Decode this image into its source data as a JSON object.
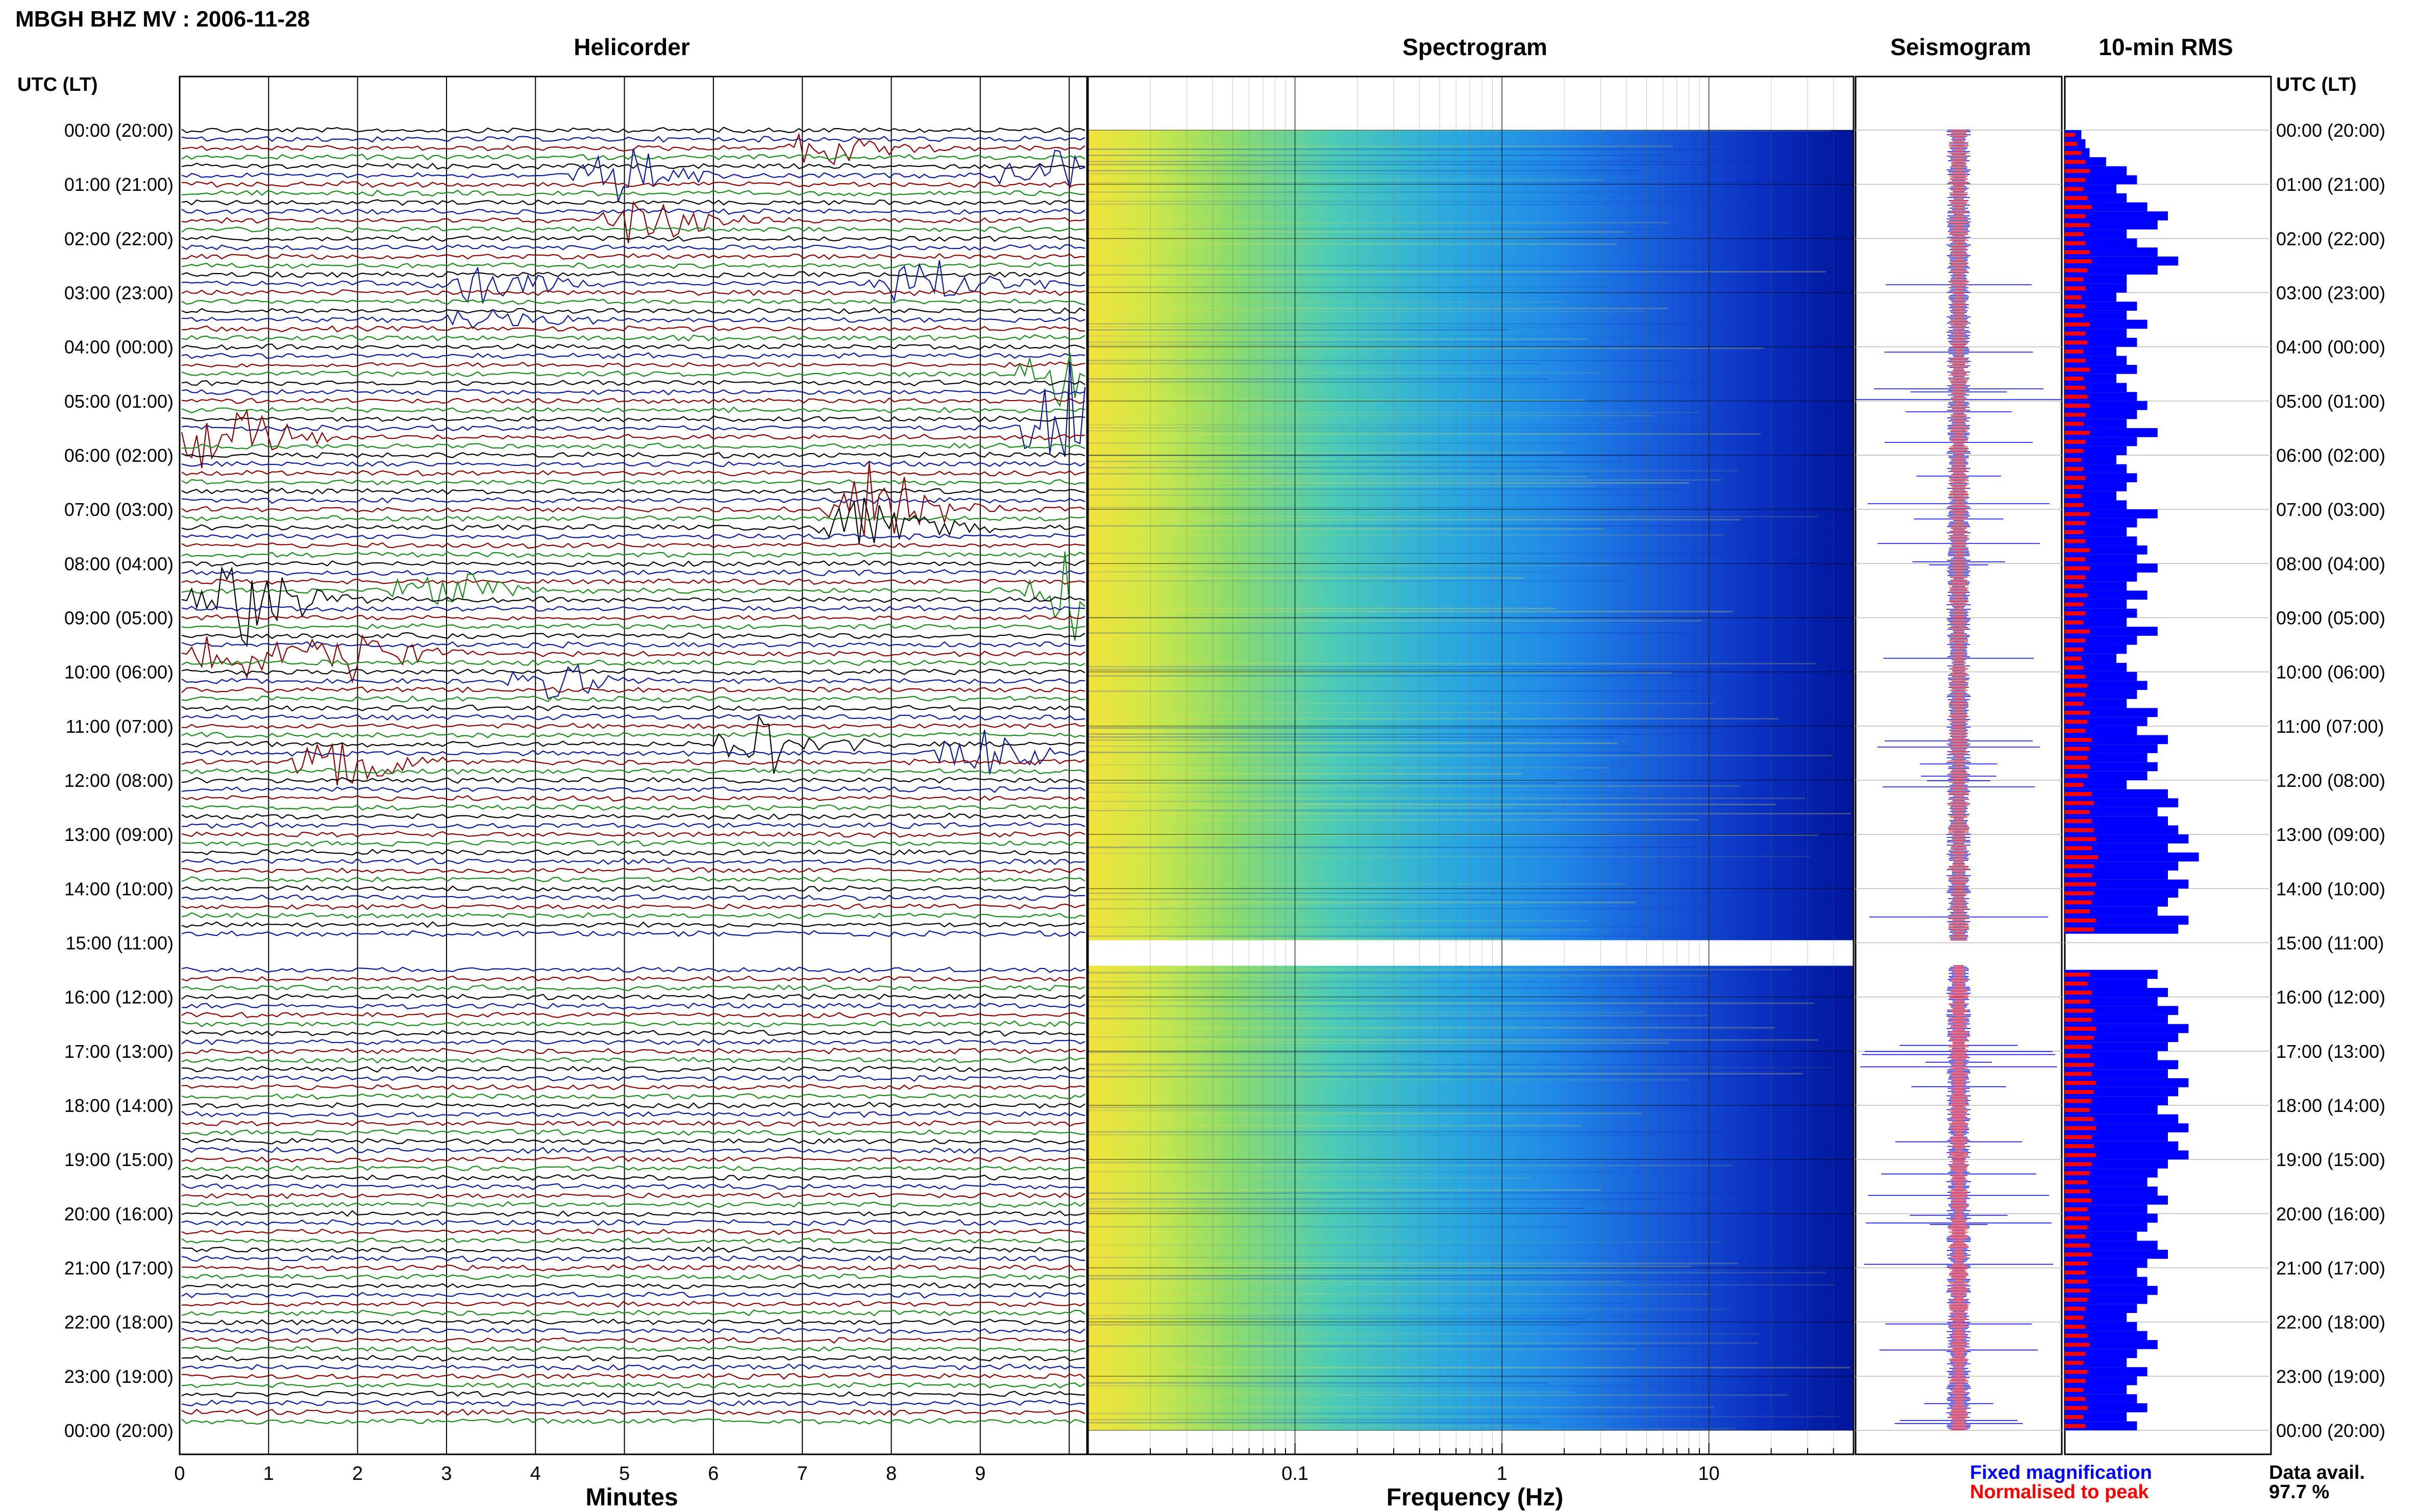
{
  "header": {
    "title": "MBGH BHZ MV : 2006-11-28",
    "utc_label": "UTC (LT)"
  },
  "panels": {
    "helicorder": "Helicorder",
    "spectrogram": "Spectrogram",
    "seismogram": "Seismogram",
    "rms": "10-min RMS"
  },
  "axes": {
    "helicorder_xlabel": "Minutes",
    "helicorder_ticks": [
      "0",
      "1",
      "2",
      "3",
      "4",
      "5",
      "6",
      "7",
      "8",
      "9"
    ],
    "spectrogram_xlabel": "Frequency (Hz)",
    "spectrogram_ticks": [
      "0.1",
      "1",
      "10"
    ]
  },
  "time_labels": [
    "00:00 (20:00)",
    "01:00 (21:00)",
    "02:00 (22:00)",
    "03:00 (23:00)",
    "04:00 (00:00)",
    "05:00 (01:00)",
    "06:00 (02:00)",
    "07:00 (03:00)",
    "08:00 (04:00)",
    "09:00 (05:00)",
    "10:00 (06:00)",
    "11:00 (07:00)",
    "12:00 (08:00)",
    "13:00 (09:00)",
    "14:00 (10:00)",
    "15:00 (11:00)",
    "16:00 (12:00)",
    "17:00 (13:00)",
    "18:00 (14:00)",
    "19:00 (15:00)",
    "20:00 (16:00)",
    "21:00 (17:00)",
    "22:00 (18:00)",
    "23:00 (19:00)",
    "00:00 (20:00)"
  ],
  "legend": {
    "fixed": "Fixed magnification",
    "normalised": "Normalised to peak",
    "fixed_color": "#0000ff",
    "normalised_color": "#ff0000"
  },
  "availability": {
    "label": "Data avail.",
    "value": "97.7 %"
  },
  "colors": {
    "trace_cycle": [
      "#000000",
      "#0a1a9a",
      "#8b0000",
      "#1a8a1a"
    ],
    "rms_fixed": "#0000ff",
    "rms_normalised": "#ff0000"
  },
  "chart_data": {
    "type": "heatmap",
    "title": "MBGH BHZ MV : 2006-11-28",
    "helicorder": {
      "xlabel": "Minutes",
      "xlim": [
        0,
        10
      ],
      "lines_per_hour": 6,
      "hours": 24,
      "data_gap_utc": [
        "15:00",
        "15:20"
      ],
      "events": [
        {
          "line": 2,
          "minute": 7.0,
          "amp": 0.9
        },
        {
          "line": 5,
          "minute": 4.7,
          "amp": 1.0
        },
        {
          "line": 5,
          "minute": 9.4,
          "amp": 0.9
        },
        {
          "line": 10,
          "minute": 5.0,
          "amp": 1.0
        },
        {
          "line": 17,
          "minute": 3.1,
          "amp": 0.9
        },
        {
          "line": 17,
          "minute": 8.0,
          "amp": 1.1
        },
        {
          "line": 21,
          "minute": 3.2,
          "amp": 0.6
        },
        {
          "line": 27,
          "minute": 9.6,
          "amp": 1.0
        },
        {
          "line": 34,
          "minute": 0.3,
          "amp": 1.4
        },
        {
          "line": 33,
          "minute": 9.6,
          "amp": 2.0
        },
        {
          "line": 42,
          "minute": 7.5,
          "amp": 1.6
        },
        {
          "line": 44,
          "minute": 7.4,
          "amp": 1.3
        },
        {
          "line": 51,
          "minute": 9.7,
          "amp": 1.3
        },
        {
          "line": 52,
          "minute": 0.5,
          "amp": 1.5
        },
        {
          "line": 51,
          "minute": 2.7,
          "amp": 0.8
        },
        {
          "line": 58,
          "minute": 0.5,
          "amp": 1.0
        },
        {
          "line": 58,
          "minute": 1.7,
          "amp": 0.9
        },
        {
          "line": 61,
          "minute": 4.0,
          "amp": 0.7
        },
        {
          "line": 68,
          "minute": 6.3,
          "amp": 1.0
        },
        {
          "line": 70,
          "minute": 1.6,
          "amp": 1.4
        },
        {
          "line": 69,
          "minute": 8.7,
          "amp": 0.8
        }
      ]
    },
    "spectrogram": {
      "xlabel": "Frequency (Hz)",
      "xlim": [
        0.01,
        50
      ],
      "xscale": "log",
      "colormap": "jet"
    },
    "rms": {
      "units": "10-min windows",
      "series": [
        {
          "name": "Fixed magnification",
          "values": [
            0.08,
            0.1,
            0.12,
            0.2,
            0.3,
            0.35,
            0.25,
            0.3,
            0.4,
            0.5,
            0.45,
            0.3,
            0.35,
            0.45,
            0.55,
            0.45,
            0.3,
            0.3,
            0.25,
            0.35,
            0.3,
            0.4,
            0.3,
            0.35,
            0.25,
            0.3,
            0.35,
            0.25,
            0.3,
            0.35,
            0.4,
            0.35,
            0.3,
            0.45,
            0.35,
            0.3,
            0.25,
            0.3,
            0.35,
            0.3,
            0.25,
            0.3,
            0.45,
            0.35,
            0.3,
            0.35,
            0.4,
            0.35,
            0.45,
            0.35,
            0.3,
            0.4,
            0.3,
            0.35,
            0.3,
            0.45,
            0.35,
            0.3,
            0.25,
            0.3,
            0.35,
            0.4,
            0.35,
            0.3,
            0.45,
            0.4,
            0.35,
            0.5,
            0.45,
            0.4,
            0.45,
            0.4,
            0.3,
            0.5,
            0.55,
            0.45,
            0.5,
            0.55,
            0.6,
            0.5,
            0.65,
            0.55,
            0.5,
            0.6,
            0.55,
            0.5,
            0.45,
            0.6,
            0.55,
            0.5,
            0.45,
            0.4,
            0.5,
            0.45,
            0.4,
            0.5,
            0.45,
            0.55,
            0.5,
            0.6,
            0.55,
            0.5,
            0.45,
            0.55,
            0.5,
            0.6,
            0.55,
            0.5,
            0.45,
            0.55,
            0.6,
            0.5,
            0.55,
            0.6,
            0.5,
            0.45,
            0.4,
            0.45,
            0.5,
            0.4,
            0.45,
            0.4,
            0.35,
            0.45,
            0.5,
            0.4,
            0.35,
            0.4,
            0.45,
            0.4,
            0.35,
            0.3,
            0.35,
            0.4,
            0.45,
            0.35,
            0.3,
            0.4,
            0.35,
            0.3,
            0.35,
            0.4,
            0.3,
            0.35
          ]
        },
        {
          "name": "Normalised to peak",
          "values": [
            0.05,
            0.06,
            0.08,
            0.1,
            0.12,
            0.1,
            0.09,
            0.11,
            0.13,
            0.1,
            0.12,
            0.09,
            0.1,
            0.12,
            0.13,
            0.11,
            0.09,
            0.1,
            0.08,
            0.1,
            0.09,
            0.12,
            0.1,
            0.11,
            0.09,
            0.1,
            0.12,
            0.09,
            0.1,
            0.11,
            0.12,
            0.1,
            0.09,
            0.12,
            0.1,
            0.09,
            0.08,
            0.09,
            0.1,
            0.09,
            0.08,
            0.09,
            0.12,
            0.1,
            0.09,
            0.1,
            0.12,
            0.1,
            0.12,
            0.1,
            0.09,
            0.11,
            0.09,
            0.1,
            0.09,
            0.12,
            0.1,
            0.09,
            0.08,
            0.09,
            0.1,
            0.11,
            0.1,
            0.09,
            0.12,
            0.11,
            0.1,
            0.13,
            0.12,
            0.11,
            0.12,
            0.11,
            0.09,
            0.13,
            0.14,
            0.12,
            0.13,
            0.14,
            0.15,
            0.13,
            0.16,
            0.14,
            0.13,
            0.15,
            0.14,
            0.13,
            0.12,
            0.15,
            0.14,
            0.13,
            0.12,
            0.11,
            0.13,
            0.12,
            0.11,
            0.13,
            0.12,
            0.14,
            0.13,
            0.15,
            0.14,
            0.13,
            0.12,
            0.14,
            0.13,
            0.15,
            0.14,
            0.13,
            0.12,
            0.14,
            0.15,
            0.13,
            0.14,
            0.15,
            0.13,
            0.12,
            0.11,
            0.12,
            0.13,
            0.11,
            0.12,
            0.11,
            0.1,
            0.12,
            0.13,
            0.11,
            0.1,
            0.11,
            0.12,
            0.11,
            0.1,
            0.09,
            0.1,
            0.11,
            0.12,
            0.1,
            0.09,
            0.11,
            0.1,
            0.09,
            0.1,
            0.11,
            0.09,
            0.1
          ]
        }
      ]
    }
  }
}
